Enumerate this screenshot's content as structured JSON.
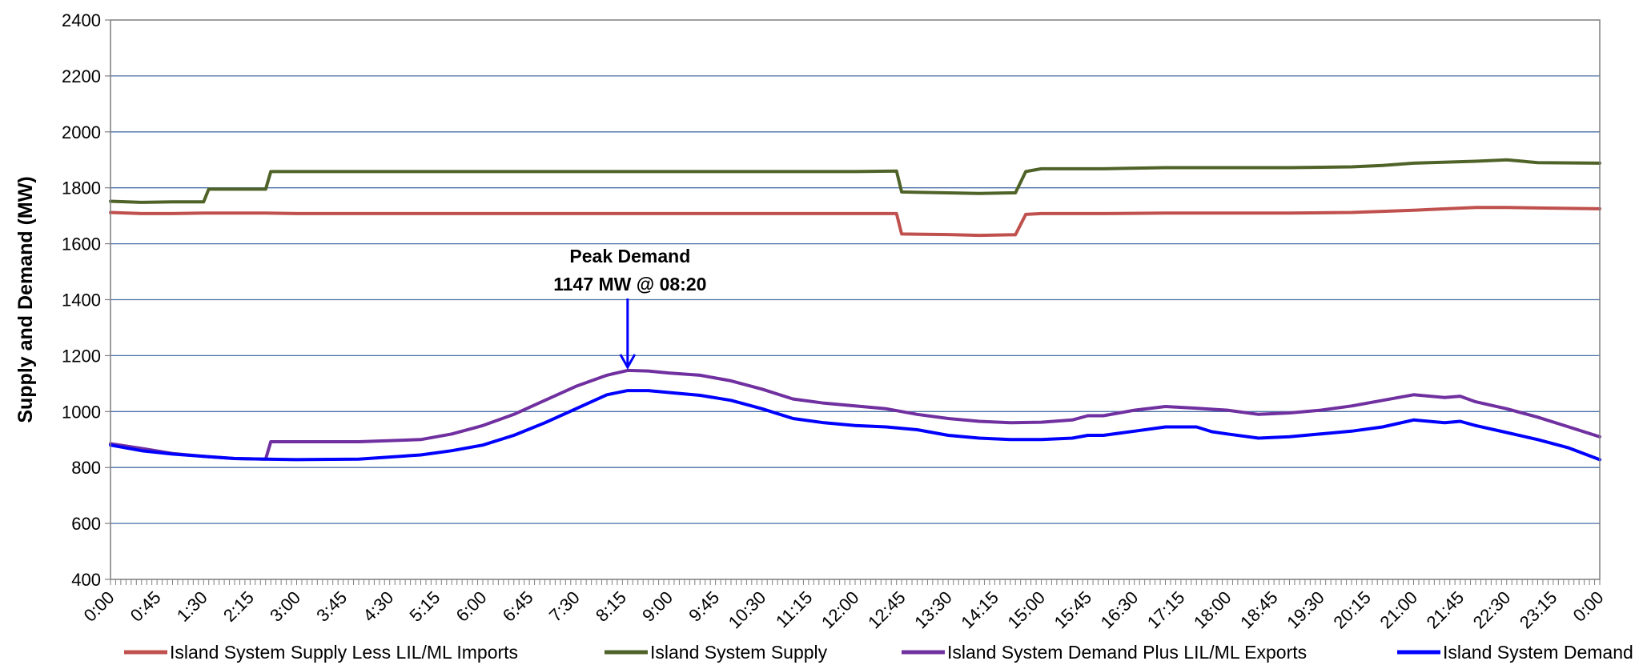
{
  "chart_data": {
    "type": "line",
    "title": "",
    "xlabel": "",
    "ylabel": "Supply and Demand (MW)",
    "ylim": [
      400,
      2400
    ],
    "yticks": [
      400,
      600,
      800,
      1000,
      1200,
      1400,
      1600,
      1800,
      2000,
      2200,
      2400
    ],
    "xlim": [
      "0:00",
      "24:00"
    ],
    "xtick_labels": [
      "0:00",
      "0:45",
      "1:30",
      "2:15",
      "3:00",
      "3:45",
      "4:30",
      "5:15",
      "6:00",
      "6:45",
      "7:30",
      "8:15",
      "9:00",
      "9:45",
      "10:30",
      "11:15",
      "12:00",
      "12:45",
      "13:30",
      "14:15",
      "15:00",
      "15:45",
      "16:30",
      "17:15",
      "18:00",
      "18:45",
      "19:30",
      "20:15",
      "21:00",
      "21:45",
      "22:30",
      "23:15",
      "0:00"
    ],
    "grid": "horizontal",
    "legend_position": "bottom",
    "annotation": {
      "line1": "Peak Demand",
      "line2": "1147 MW @ 08:20",
      "x": "8:20",
      "y": 1147
    },
    "series": [
      {
        "name": "Island System Supply Less LIL/ML Imports",
        "color": "#c0504d",
        "x": [
          "0:00",
          "0:30",
          "1:00",
          "1:30",
          "2:00",
          "2:30",
          "3:00",
          "6:00",
          "9:00",
          "12:00",
          "12:30",
          "12:40",
          "12:45",
          "13:30",
          "14:00",
          "14:30",
          "14:35",
          "14:45",
          "15:00",
          "16:00",
          "17:00",
          "18:00",
          "19:00",
          "20:00",
          "21:00",
          "22:00",
          "22:30",
          "23:00",
          "24:00"
        ],
        "values": [
          1712,
          1708,
          1708,
          1710,
          1710,
          1710,
          1708,
          1708,
          1708,
          1708,
          1708,
          1708,
          1635,
          1633,
          1630,
          1632,
          1632,
          1705,
          1708,
          1708,
          1710,
          1710,
          1710,
          1712,
          1720,
          1730,
          1730,
          1728,
          1725
        ]
      },
      {
        "name": "Island System Supply",
        "color": "#4f6228",
        "x": [
          "0:00",
          "0:30",
          "1:00",
          "1:30",
          "1:35",
          "2:30",
          "2:35",
          "4:00",
          "6:00",
          "9:00",
          "12:00",
          "12:40",
          "12:45",
          "13:30",
          "14:00",
          "14:30",
          "14:35",
          "14:45",
          "15:00",
          "16:00",
          "17:00",
          "18:00",
          "19:00",
          "20:00",
          "20:30",
          "21:00",
          "22:00",
          "22:30",
          "23:00",
          "24:00"
        ],
        "values": [
          1752,
          1748,
          1750,
          1750,
          1795,
          1795,
          1858,
          1858,
          1858,
          1858,
          1858,
          1860,
          1785,
          1782,
          1780,
          1782,
          1782,
          1858,
          1868,
          1868,
          1872,
          1872,
          1872,
          1875,
          1880,
          1888,
          1895,
          1900,
          1890,
          1888
        ]
      },
      {
        "name": "Island System Demand Plus LIL/ML Exports",
        "color": "#7030a0",
        "x": [
          "0:00",
          "0:30",
          "1:00",
          "1:30",
          "2:00",
          "2:30",
          "2:35",
          "3:00",
          "4:00",
          "5:00",
          "5:30",
          "6:00",
          "6:30",
          "7:00",
          "7:30",
          "8:00",
          "8:20",
          "8:40",
          "9:00",
          "9:30",
          "10:00",
          "10:30",
          "11:00",
          "11:30",
          "12:00",
          "12:30",
          "13:00",
          "13:30",
          "14:00",
          "14:30",
          "15:00",
          "15:30",
          "15:45",
          "16:00",
          "16:30",
          "17:00",
          "17:30",
          "18:00",
          "18:30",
          "19:00",
          "19:30",
          "20:00",
          "20:30",
          "21:00",
          "21:30",
          "21:45",
          "22:00",
          "22:30",
          "23:00",
          "23:30",
          "24:00"
        ],
        "values": [
          885,
          868,
          850,
          840,
          832,
          830,
          892,
          892,
          892,
          900,
          920,
          950,
          990,
          1040,
          1090,
          1130,
          1147,
          1145,
          1138,
          1130,
          1110,
          1080,
          1045,
          1030,
          1020,
          1010,
          990,
          975,
          965,
          960,
          962,
          970,
          985,
          985,
          1005,
          1018,
          1012,
          1005,
          990,
          995,
          1005,
          1020,
          1040,
          1060,
          1050,
          1055,
          1035,
          1010,
          980,
          945,
          910
        ]
      },
      {
        "name": "Island System Demand",
        "color": "#0000ff",
        "x": [
          "0:00",
          "0:30",
          "1:00",
          "1:30",
          "2:00",
          "2:30",
          "3:00",
          "4:00",
          "5:00",
          "5:30",
          "6:00",
          "6:30",
          "7:00",
          "7:30",
          "8:00",
          "8:20",
          "8:40",
          "9:00",
          "9:30",
          "10:00",
          "10:30",
          "11:00",
          "11:30",
          "12:00",
          "12:30",
          "13:00",
          "13:30",
          "14:00",
          "14:30",
          "15:00",
          "15:30",
          "15:45",
          "16:00",
          "16:30",
          "17:00",
          "17:30",
          "17:45",
          "18:00",
          "18:30",
          "19:00",
          "19:30",
          "20:00",
          "20:30",
          "21:00",
          "21:30",
          "21:45",
          "22:00",
          "22:30",
          "23:00",
          "23:30",
          "24:00"
        ],
        "values": [
          880,
          860,
          848,
          840,
          832,
          830,
          828,
          830,
          845,
          860,
          880,
          915,
          960,
          1010,
          1060,
          1075,
          1075,
          1068,
          1058,
          1040,
          1010,
          975,
          960,
          950,
          945,
          935,
          915,
          905,
          900,
          900,
          905,
          915,
          915,
          930,
          945,
          945,
          928,
          920,
          905,
          910,
          920,
          930,
          945,
          970,
          960,
          965,
          950,
          925,
          900,
          870,
          828
        ]
      }
    ]
  }
}
